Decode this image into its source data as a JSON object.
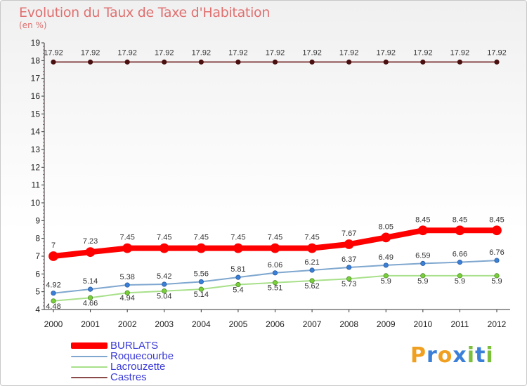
{
  "title": "Evolution du Taux de Taxe d'Habitation",
  "subtitle": "(en %)",
  "logo": {
    "letters": [
      "P",
      "r",
      "o",
      "x",
      "i",
      "t",
      "i"
    ],
    "colors": [
      "#f0a020",
      "#3a7fd8",
      "#f0a020",
      "#3a7fd8",
      "#7bbf3a",
      "#3a7fd8",
      "#7bbf3a"
    ]
  },
  "chart_data": {
    "type": "line",
    "title": "Evolution du Taux de Taxe d'Habitation",
    "ylabel": "(en %)",
    "x": [
      "2000",
      "2001",
      "2002",
      "2003",
      "2004",
      "2005",
      "2006",
      "2007",
      "2008",
      "2009",
      "2010",
      "2011",
      "2012"
    ],
    "ylim": [
      4,
      19
    ],
    "yticks": [
      4,
      5,
      6,
      7,
      8,
      9,
      10,
      11,
      12,
      13,
      14,
      15,
      16,
      17,
      18,
      19
    ],
    "grid": false,
    "legend_position": "bottom-left",
    "series": [
      {
        "name": "BURLATS",
        "color": "#ff0000",
        "values": [
          7,
          7.23,
          7.45,
          7.45,
          7.45,
          7.45,
          7.45,
          7.45,
          7.67,
          8.05,
          8.45,
          8.45,
          8.45
        ],
        "labels": [
          "7",
          "7.23",
          "7.45",
          "7.45",
          "7.45",
          "7.45",
          "7.45",
          "7.45",
          "7.67",
          "8.05",
          "8.45",
          "8.45",
          "8.45"
        ]
      },
      {
        "name": "Roquecourbe",
        "color": "#7fa7cf",
        "marker_color": "#3a7fd8",
        "values": [
          4.92,
          5.14,
          5.38,
          5.42,
          5.56,
          5.81,
          6.06,
          6.21,
          6.37,
          6.49,
          6.59,
          6.66,
          6.76
        ],
        "labels": [
          "4.92",
          "5.14",
          "5.38",
          "5.42",
          "5.56",
          "5.81",
          "6.06",
          "6.21",
          "6.37",
          "6.49",
          "6.59",
          "6.66",
          "6.76"
        ]
      },
      {
        "name": "Lacrouzette",
        "color": "#a8e08a",
        "marker_color": "#7bcf3a",
        "values": [
          4.48,
          4.66,
          4.94,
          5.04,
          5.14,
          5.4,
          5.51,
          5.62,
          5.73,
          5.9,
          5.9,
          5.9,
          5.9
        ],
        "labels": [
          "4.48",
          "4.66",
          "4.94",
          "5.04",
          "5.14",
          "5.4",
          "5.51",
          "5.62",
          "5.73",
          "5.9",
          "5.9",
          "5.9",
          "5.9"
        ]
      },
      {
        "name": "Castres",
        "color": "#8b4a4a",
        "marker_color": "#4a1010",
        "values": [
          17.92,
          17.92,
          17.92,
          17.92,
          17.92,
          17.92,
          17.92,
          17.92,
          17.92,
          17.92,
          17.92,
          17.92,
          17.92
        ],
        "labels": [
          "17.92",
          "17.92",
          "17.92",
          "17.92",
          "17.92",
          "17.92",
          "17.92",
          "17.92",
          "17.92",
          "17.92",
          "17.92",
          "17.92",
          "17.92"
        ]
      }
    ]
  }
}
